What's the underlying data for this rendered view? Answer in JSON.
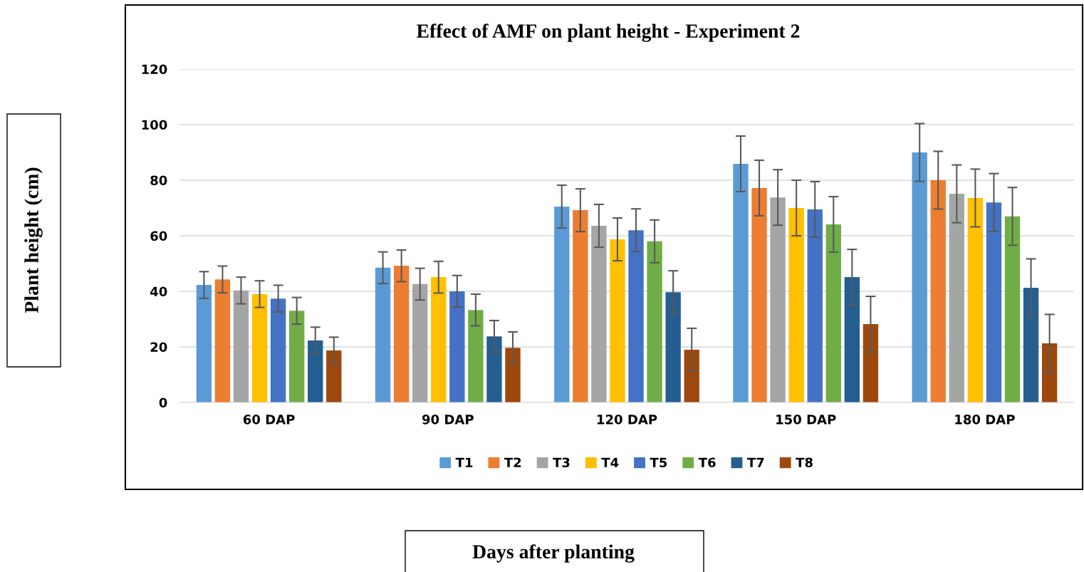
{
  "chart_data": {
    "type": "bar",
    "title": "Effect of AMF on plant height - Experiment 2",
    "annotations": [
      "Plant height (cm)",
      "Days after planting"
    ],
    "categories": [
      "60 DAP",
      "90 DAP",
      "120 DAP",
      "150 DAP",
      "180 DAP"
    ],
    "series": [
      {
        "name": "T1",
        "color": "#5b9bd5",
        "values": [
          42.3,
          48.5,
          70.5,
          85.9,
          90
        ],
        "errors": [
          4.8,
          5.7,
          7.7,
          10,
          10.4
        ]
      },
      {
        "name": "T2",
        "color": "#ed7d31",
        "values": [
          44.3,
          49.2,
          69.2,
          77.2,
          80
        ],
        "errors": [
          4.8,
          5.7,
          7.7,
          10,
          10.4
        ]
      },
      {
        "name": "T3",
        "color": "#a5a5a5",
        "values": [
          40.3,
          42.6,
          63.6,
          73.8,
          75.1
        ],
        "errors": [
          4.8,
          5.7,
          7.7,
          10,
          10.4
        ]
      },
      {
        "name": "T4",
        "color": "#ffc000",
        "values": [
          39,
          45.1,
          58.7,
          70,
          73.6
        ],
        "errors": [
          4.8,
          5.7,
          7.7,
          10,
          10.4
        ]
      },
      {
        "name": "T5",
        "color": "#4472c4",
        "values": [
          37.4,
          40,
          62,
          69.5,
          72
        ],
        "errors": [
          4.8,
          5.7,
          7.7,
          10,
          10.4
        ]
      },
      {
        "name": "T6",
        "color": "#70ad47",
        "values": [
          33,
          33.3,
          58,
          64.1,
          67
        ],
        "errors": [
          4.8,
          5.7,
          7.7,
          10,
          10.4
        ]
      },
      {
        "name": "T7",
        "color": "#255e91",
        "values": [
          22.3,
          23.8,
          39.7,
          45.1,
          41.3
        ],
        "errors": [
          4.8,
          5.7,
          7.7,
          10,
          10.4
        ]
      },
      {
        "name": "T8",
        "color": "#9e480e",
        "values": [
          18.7,
          19.7,
          19,
          28.2,
          21.3
        ],
        "errors": [
          4.8,
          5.7,
          7.7,
          10,
          10.4
        ]
      }
    ],
    "ylim": [
      0,
      120
    ],
    "yticks": [
      0,
      20,
      40,
      60,
      80,
      100,
      120
    ],
    "grid": "y",
    "legend": "bottom"
  }
}
